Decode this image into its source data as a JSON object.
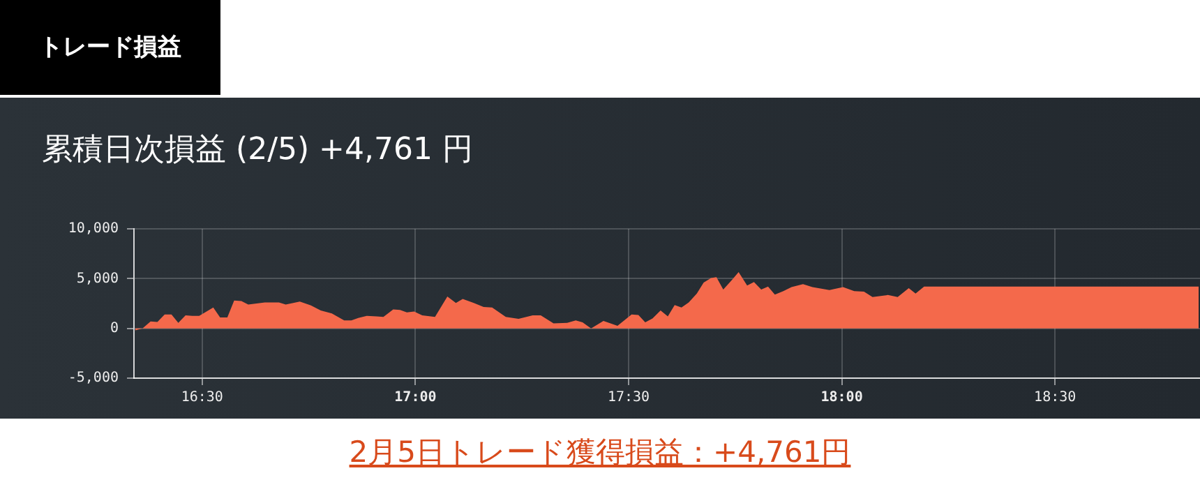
{
  "chart_data": {
    "type": "area",
    "title": "累積日次損益 (2/5) +4,761 円",
    "annotations": [
      "トレード損益",
      "2月5日トレード獲得損益：+4,761円"
    ],
    "series": [
      {
        "color": "#f4694b",
        "x": [
          16.343,
          16.36,
          16.379,
          16.395,
          16.412,
          16.428,
          16.444,
          16.461,
          16.477,
          16.493,
          16.526,
          16.542,
          16.559,
          16.575,
          16.592,
          16.608,
          16.647,
          16.68,
          16.696,
          16.729,
          16.755,
          16.778,
          16.804,
          16.833,
          16.85,
          16.866,
          16.886,
          16.909,
          16.925,
          16.948,
          16.964,
          16.98,
          16.997,
          17.016,
          17.046,
          17.075,
          17.095,
          17.111,
          17.137,
          17.16,
          17.18,
          17.212,
          17.242,
          17.275,
          17.294,
          17.324,
          17.356,
          17.376,
          17.392,
          17.412,
          17.441,
          17.474,
          17.507,
          17.523,
          17.539,
          17.556,
          17.575,
          17.592,
          17.608,
          17.624,
          17.641,
          17.66,
          17.676,
          17.693,
          17.706,
          17.722,
          17.742,
          17.758,
          17.778,
          17.794,
          17.811,
          17.827,
          17.843,
          17.863,
          17.882,
          17.909,
          17.931,
          17.971,
          18.003,
          18.029,
          18.052,
          18.072,
          18.108,
          18.131,
          18.157,
          18.173,
          18.193,
          18.837
        ],
        "values": [
          -200,
          0,
          700,
          650,
          1400,
          1400,
          550,
          1300,
          1250,
          1250,
          2100,
          1100,
          1100,
          2800,
          2750,
          2400,
          2600,
          2600,
          2400,
          2700,
          2300,
          1800,
          1500,
          800,
          800,
          1050,
          1250,
          1200,
          1150,
          1900,
          1850,
          1600,
          1700,
          1300,
          1150,
          3200,
          2550,
          2950,
          2550,
          2150,
          2100,
          1150,
          950,
          1300,
          1300,
          500,
          550,
          800,
          600,
          0,
          750,
          250,
          1400,
          1350,
          600,
          1000,
          1800,
          1200,
          2350,
          2100,
          2600,
          3500,
          4600,
          5050,
          5150,
          3900,
          4850,
          5650,
          4300,
          4650,
          3900,
          4200,
          3400,
          3750,
          4150,
          4450,
          4150,
          3850,
          4150,
          3750,
          3700,
          3150,
          3350,
          3150,
          4050,
          3500,
          4200,
          4200
        ]
      }
    ],
    "xlim": [
      16.34,
      18.84
    ],
    "xticks": [
      {
        "value": 16.5,
        "label": "16:30"
      },
      {
        "value": 17,
        "label": "17:00"
      },
      {
        "value": 17.5,
        "label": "17:30"
      },
      {
        "value": 18,
        "label": "18:00"
      },
      {
        "value": 18.5,
        "label": "18:30"
      }
    ],
    "ylim": [
      -5000,
      10000
    ],
    "yticks": [
      {
        "value": -5000,
        "label": "-5,000"
      },
      {
        "value": 0,
        "label": "0"
      },
      {
        "value": 5000,
        "label": "5,000"
      },
      {
        "value": 10000,
        "label": "10,000"
      }
    ],
    "grid": true,
    "legend": false,
    "marker": "none"
  }
}
